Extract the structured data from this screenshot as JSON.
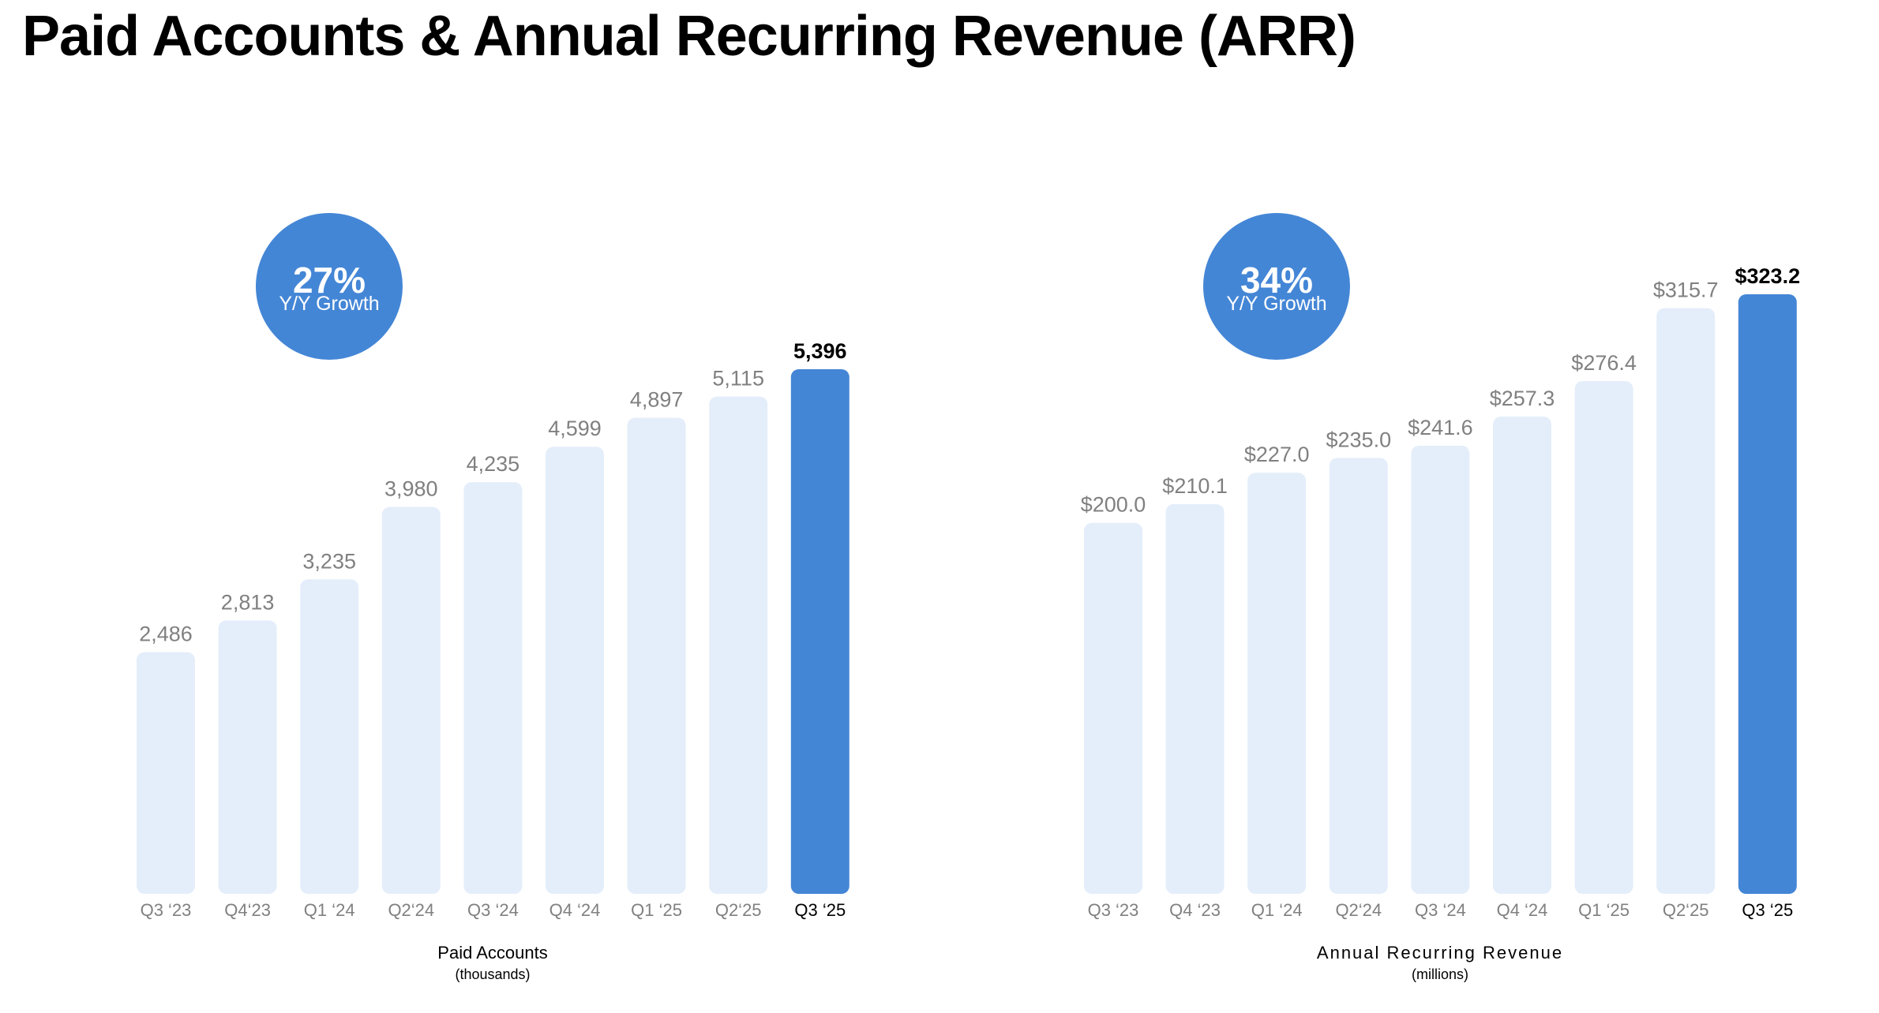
{
  "title": "Paid Accounts & Annual Recurring Revenue (ARR)",
  "colors": {
    "bar": "#e4eefa",
    "highlight": "#4486d6",
    "circle": "#4486d6"
  },
  "chart_data": [
    {
      "type": "bar",
      "categories": [
        "Q3 ‘23",
        "Q4‘23",
        "Q1 ‘24",
        "Q2‘24",
        "Q3 ‘24",
        "Q4 ‘24",
        "Q1 ‘25",
        "Q2‘25",
        "Q3 ‘25"
      ],
      "values": [
        2486,
        2813,
        3235,
        3980,
        4235,
        4599,
        4897,
        5115,
        5396
      ],
      "value_labels": [
        "2,486",
        "2,813",
        "3,235",
        "3,980",
        "4,235",
        "4,599",
        "4,897",
        "5,115",
        "5,396"
      ],
      "highlight_index": 8,
      "xlabel": "Paid Accounts",
      "xlabel_sub": "(thousands)",
      "growth": {
        "value": "27%",
        "label": "Y/Y Growth"
      },
      "ylim": [
        0,
        5396
      ],
      "grid": false
    },
    {
      "type": "bar",
      "categories": [
        "Q3 ‘23",
        "Q4 ‘23",
        "Q1 ‘24",
        "Q2‘24",
        "Q3 ‘24",
        "Q4 ‘24",
        "Q1 ‘25",
        "Q2‘25",
        "Q3 ‘25"
      ],
      "values": [
        200.0,
        210.1,
        227.0,
        235.0,
        241.6,
        257.3,
        276.4,
        315.7,
        323.2
      ],
      "value_labels": [
        "$200.0",
        "$210.1",
        "$227.0",
        "$235.0",
        "$241.6",
        "$257.3",
        "$276.4",
        "$315.7",
        "$323.2"
      ],
      "highlight_index": 8,
      "xlabel": "Annual Recurring Revenue",
      "xlabel_sub": "(millions)",
      "growth": {
        "value": "34%",
        "label": "Y/Y Growth"
      },
      "ylim": [
        0,
        323.2
      ],
      "grid": false
    }
  ]
}
